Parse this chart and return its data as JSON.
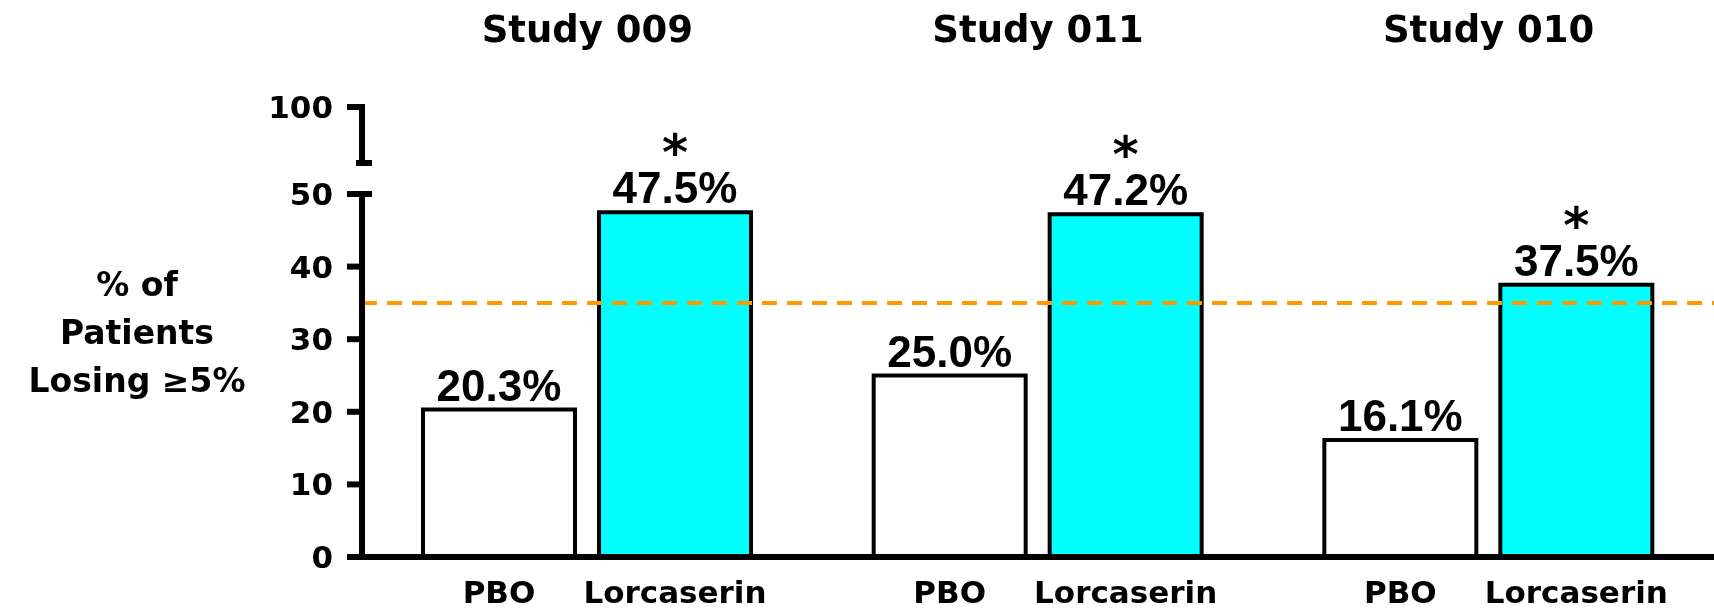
{
  "chart_data": {
    "type": "bar",
    "categories": [
      "Study 009",
      "Study 011",
      "Study 010"
    ],
    "series": [
      {
        "name": "PBO",
        "color": "#ffffff",
        "values": [
          20.3,
          25.0,
          16.1
        ],
        "value_labels": [
          "20.3%",
          "25.0%",
          "16.1%"
        ]
      },
      {
        "name": "Lorcaserin",
        "color": "#00ffff",
        "values": [
          47.5,
          47.2,
          37.5
        ],
        "value_labels": [
          "47.5%",
          "47.2%",
          "37.5%"
        ]
      }
    ],
    "ylabel": "% of Patients Losing ≥5%",
    "ylim": [
      0,
      50
    ],
    "yticks": [
      0,
      10,
      20,
      30,
      40,
      50
    ],
    "ref_lines": [
      {
        "axis": "y",
        "value": 35,
        "color": "#ff9900",
        "line_style": "dashed"
      }
    ],
    "annotations": [
      "100",
      "*",
      "*",
      "*"
    ]
  }
}
